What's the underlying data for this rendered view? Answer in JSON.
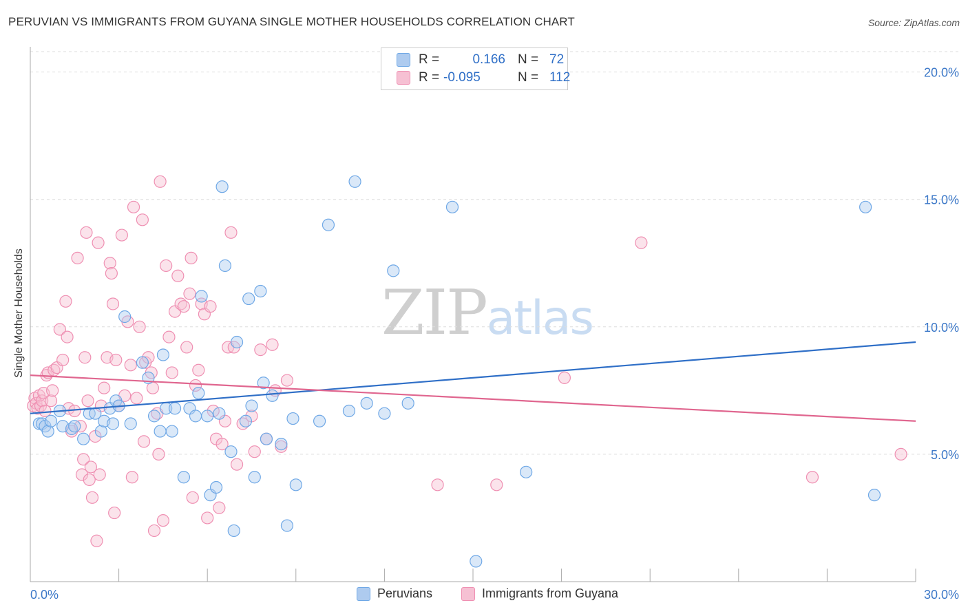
{
  "title": "PERUVIAN VS IMMIGRANTS FROM GUYANA SINGLE MOTHER HOUSEHOLDS CORRELATION CHART",
  "source": "Source: ZipAtlas.com",
  "watermark": {
    "zip": "ZIP",
    "atlas": "atlas"
  },
  "colors": {
    "blue": "#6fa8e6",
    "blue_fill": "#aecbef",
    "blue_line": "#2f6fc7",
    "pink": "#ef8fb2",
    "pink_fill": "#f6c0d3",
    "pink_line": "#e0668f",
    "tick_label": "#3c78c8"
  },
  "correlation": {
    "rows": [
      {
        "r_label": "R =",
        "r_value": "0.166",
        "n_label": "N =",
        "n_value": "72"
      },
      {
        "r_label": "R =",
        "r_value": "-0.095",
        "n_label": "N =",
        "n_value": "112"
      }
    ]
  },
  "chart_data": {
    "type": "scatter",
    "title": "PERUVIAN VS IMMIGRANTS FROM GUYANA SINGLE MOTHER HOUSEHOLDS CORRELATION CHART",
    "xlabel": "",
    "ylabel": "Single Mother Households",
    "xlim": [
      0,
      30
    ],
    "ylim": [
      0,
      20.8
    ],
    "x_tick_labels": [
      "0.0%",
      "30.0%"
    ],
    "y_ticks": [
      5,
      10,
      15,
      20
    ],
    "y_tick_labels": [
      "5.0%",
      "10.0%",
      "15.0%",
      "20.0%"
    ],
    "grid": true,
    "legend_placement": "bottom",
    "series": [
      {
        "name": "Peruvians",
        "trend": {
          "x": [
            0,
            30
          ],
          "y": [
            6.6,
            9.4
          ]
        },
        "points": [
          [
            0.3,
            6.2
          ],
          [
            0.4,
            6.2
          ],
          [
            0.5,
            6.1
          ],
          [
            0.6,
            5.9
          ],
          [
            0.7,
            6.3
          ],
          [
            1.0,
            6.7
          ],
          [
            1.1,
            6.1
          ],
          [
            1.4,
            6.0
          ],
          [
            1.5,
            6.1
          ],
          [
            1.8,
            5.6
          ],
          [
            2.0,
            6.6
          ],
          [
            2.2,
            6.6
          ],
          [
            2.4,
            5.9
          ],
          [
            2.5,
            6.3
          ],
          [
            2.7,
            6.8
          ],
          [
            2.8,
            6.2
          ],
          [
            2.9,
            7.1
          ],
          [
            3.0,
            6.9
          ],
          [
            3.2,
            10.4
          ],
          [
            3.4,
            6.2
          ],
          [
            3.8,
            8.6
          ],
          [
            4.0,
            8.0
          ],
          [
            4.2,
            6.5
          ],
          [
            4.4,
            5.9
          ],
          [
            4.5,
            8.9
          ],
          [
            4.6,
            6.8
          ],
          [
            4.9,
            6.8
          ],
          [
            4.8,
            5.9
          ],
          [
            5.2,
            4.1
          ],
          [
            5.4,
            6.8
          ],
          [
            5.6,
            6.5
          ],
          [
            5.7,
            7.4
          ],
          [
            5.8,
            11.2
          ],
          [
            6.0,
            6.5
          ],
          [
            6.1,
            3.4
          ],
          [
            6.3,
            3.7
          ],
          [
            6.4,
            6.6
          ],
          [
            6.5,
            15.5
          ],
          [
            6.6,
            12.4
          ],
          [
            6.8,
            5.1
          ],
          [
            6.9,
            2.0
          ],
          [
            7.0,
            9.4
          ],
          [
            7.3,
            6.3
          ],
          [
            7.4,
            11.1
          ],
          [
            7.5,
            6.9
          ],
          [
            7.6,
            4.1
          ],
          [
            7.8,
            11.4
          ],
          [
            7.9,
            7.8
          ],
          [
            8.0,
            5.6
          ],
          [
            8.2,
            7.3
          ],
          [
            8.5,
            5.4
          ],
          [
            8.7,
            2.2
          ],
          [
            8.9,
            6.4
          ],
          [
            9.0,
            3.8
          ],
          [
            9.8,
            6.3
          ],
          [
            10.1,
            14.0
          ],
          [
            10.8,
            6.7
          ],
          [
            11.0,
            15.7
          ],
          [
            11.4,
            7.0
          ],
          [
            12.0,
            6.6
          ],
          [
            12.3,
            12.2
          ],
          [
            12.8,
            7.0
          ],
          [
            14.3,
            14.7
          ],
          [
            15.1,
            0.8
          ],
          [
            16.8,
            4.3
          ],
          [
            28.3,
            14.7
          ],
          [
            28.6,
            3.4
          ]
        ]
      },
      {
        "name": "Immigrants from Guyana",
        "trend": {
          "x": [
            0,
            30
          ],
          "y": [
            8.1,
            6.3
          ]
        },
        "points": [
          [
            0.1,
            6.9
          ],
          [
            0.15,
            7.2
          ],
          [
            0.2,
            7.0
          ],
          [
            0.25,
            6.8
          ],
          [
            0.3,
            7.3
          ],
          [
            0.35,
            6.9
          ],
          [
            0.4,
            7.1
          ],
          [
            0.45,
            7.4
          ],
          [
            0.5,
            6.7
          ],
          [
            0.55,
            8.1
          ],
          [
            0.6,
            8.2
          ],
          [
            0.7,
            7.1
          ],
          [
            0.75,
            7.5
          ],
          [
            0.8,
            8.3
          ],
          [
            0.9,
            8.4
          ],
          [
            1.0,
            9.9
          ],
          [
            1.1,
            8.7
          ],
          [
            1.2,
            11.0
          ],
          [
            1.25,
            9.6
          ],
          [
            1.3,
            6.8
          ],
          [
            1.4,
            5.9
          ],
          [
            1.5,
            6.7
          ],
          [
            1.6,
            12.7
          ],
          [
            1.7,
            6.1
          ],
          [
            1.75,
            4.2
          ],
          [
            1.8,
            4.8
          ],
          [
            1.85,
            8.8
          ],
          [
            1.9,
            13.7
          ],
          [
            1.95,
            7.1
          ],
          [
            2.0,
            4.0
          ],
          [
            2.05,
            4.5
          ],
          [
            2.1,
            3.3
          ],
          [
            2.2,
            5.7
          ],
          [
            2.25,
            1.6
          ],
          [
            2.3,
            13.3
          ],
          [
            2.35,
            4.2
          ],
          [
            2.4,
            6.9
          ],
          [
            2.5,
            7.6
          ],
          [
            2.6,
            8.8
          ],
          [
            2.7,
            12.5
          ],
          [
            2.75,
            12.1
          ],
          [
            2.8,
            10.9
          ],
          [
            2.85,
            2.7
          ],
          [
            2.9,
            8.7
          ],
          [
            3.0,
            6.9
          ],
          [
            3.1,
            13.6
          ],
          [
            3.2,
            7.3
          ],
          [
            3.3,
            10.2
          ],
          [
            3.4,
            8.5
          ],
          [
            3.45,
            4.1
          ],
          [
            3.5,
            14.7
          ],
          [
            3.6,
            7.2
          ],
          [
            3.7,
            10.0
          ],
          [
            3.8,
            14.2
          ],
          [
            3.85,
            5.5
          ],
          [
            3.9,
            8.6
          ],
          [
            4.0,
            8.8
          ],
          [
            4.1,
            8.2
          ],
          [
            4.15,
            7.6
          ],
          [
            4.2,
            2.0
          ],
          [
            4.3,
            6.6
          ],
          [
            4.35,
            5.0
          ],
          [
            4.4,
            15.7
          ],
          [
            4.5,
            2.4
          ],
          [
            4.6,
            12.4
          ],
          [
            4.7,
            9.6
          ],
          [
            4.8,
            8.2
          ],
          [
            4.9,
            10.6
          ],
          [
            5.0,
            12.0
          ],
          [
            5.1,
            10.9
          ],
          [
            5.2,
            10.8
          ],
          [
            5.3,
            9.2
          ],
          [
            5.4,
            11.3
          ],
          [
            5.45,
            12.7
          ],
          [
            5.5,
            3.3
          ],
          [
            5.6,
            7.7
          ],
          [
            5.7,
            8.3
          ],
          [
            5.8,
            10.9
          ],
          [
            5.9,
            10.5
          ],
          [
            6.0,
            2.5
          ],
          [
            6.1,
            10.8
          ],
          [
            6.2,
            6.7
          ],
          [
            6.3,
            5.6
          ],
          [
            6.4,
            2.9
          ],
          [
            6.5,
            5.4
          ],
          [
            6.6,
            6.3
          ],
          [
            6.7,
            9.2
          ],
          [
            6.8,
            13.7
          ],
          [
            6.9,
            9.2
          ],
          [
            7.0,
            4.6
          ],
          [
            7.2,
            6.2
          ],
          [
            7.5,
            6.5
          ],
          [
            7.6,
            5.1
          ],
          [
            7.8,
            9.1
          ],
          [
            8.0,
            5.6
          ],
          [
            8.2,
            9.3
          ],
          [
            8.3,
            7.5
          ],
          [
            8.5,
            5.3
          ],
          [
            8.7,
            7.9
          ],
          [
            13.8,
            3.8
          ],
          [
            15.8,
            3.8
          ],
          [
            18.1,
            8.0
          ],
          [
            20.7,
            13.3
          ],
          [
            26.5,
            4.1
          ],
          [
            29.5,
            5.0
          ]
        ]
      }
    ]
  },
  "legend": {
    "items": [
      {
        "label": "Peruvians"
      },
      {
        "label": "Immigrants from Guyana"
      }
    ]
  }
}
